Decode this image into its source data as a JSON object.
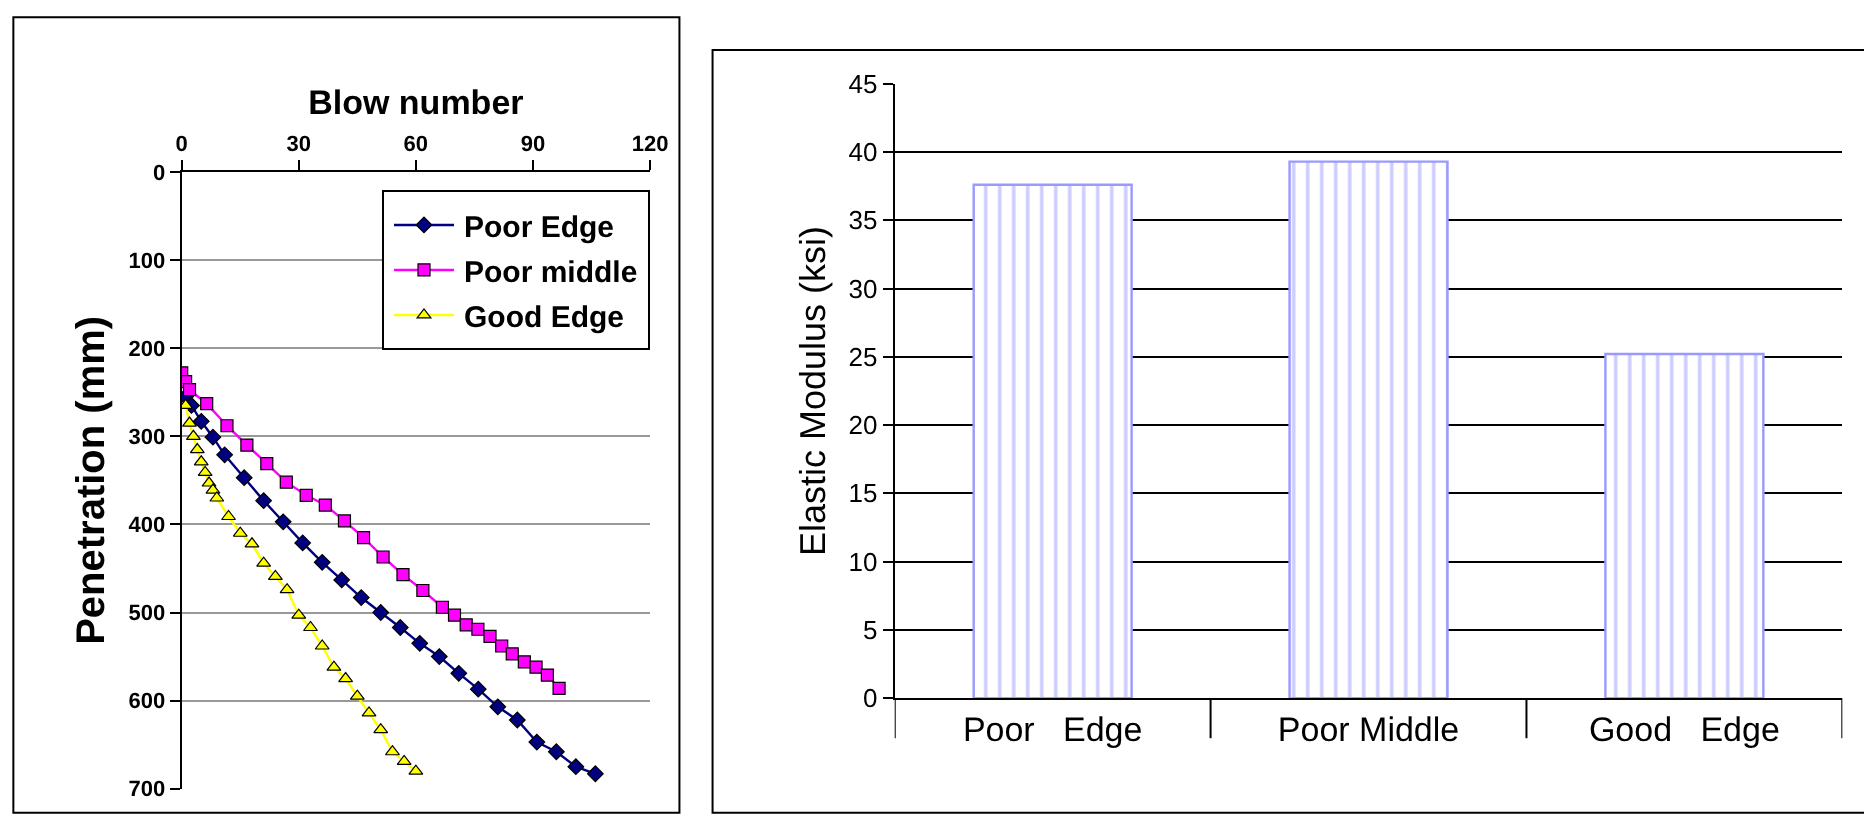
{
  "chart_data": [
    {
      "type": "line",
      "xlabel": "Blow number",
      "ylabel": "Penetration (mm)",
      "xlim": [
        0,
        120
      ],
      "xticks": [
        0,
        30,
        60,
        90,
        120
      ],
      "ylim": [
        700,
        0
      ],
      "yticks": [
        0,
        100,
        200,
        300,
        400,
        500,
        600,
        700
      ],
      "grid": "y",
      "legend": "top right",
      "series": [
        {
          "name": "Poor Edge",
          "color": "#000080",
          "marker": "diamond",
          "x": [
            1,
            2.5,
            5,
            8,
            11,
            16,
            21,
            26,
            31,
            36,
            41,
            46,
            51,
            56,
            61,
            66,
            71,
            76,
            81,
            86,
            91,
            96,
            101,
            106
          ],
          "values": [
            255,
            265,
            283,
            301,
            321,
            347,
            373,
            397,
            421,
            443,
            463,
            483,
            500,
            517,
            535,
            550,
            569,
            587,
            607,
            622,
            647,
            658,
            675,
            683
          ]
        },
        {
          "name": "Poor middle",
          "color": "#ff00ff",
          "marker": "square",
          "x": [
            0,
            1,
            2,
            6.4,
            11.6,
            16.7,
            21.8,
            26.8,
            31.9,
            36.8,
            41.7,
            46.6,
            51.6,
            56.7,
            61.8,
            66.8,
            69.9,
            72.9,
            75.9,
            79,
            82,
            84.7,
            87.8,
            90.8,
            93.7,
            96.7
          ],
          "values": [
            228,
            238,
            247,
            263,
            288,
            310,
            331,
            352,
            367,
            378,
            396,
            415,
            437,
            457,
            475,
            494,
            503,
            514,
            519,
            527,
            538,
            547,
            556,
            562,
            571,
            586
          ]
        },
        {
          "name": "Good Edge",
          "color": "#ffff00",
          "marker": "triangle",
          "x": [
            1,
            2,
            3,
            4,
            5,
            6,
            7,
            8,
            9,
            12,
            15,
            18,
            21,
            24,
            27,
            30,
            33,
            36,
            39,
            42,
            45,
            48,
            51,
            54,
            57,
            60
          ],
          "values": [
            265,
            285,
            300,
            315,
            329,
            341,
            353,
            361,
            370,
            391,
            410,
            422,
            444,
            459,
            474,
            503,
            517,
            538,
            562,
            575,
            595,
            614,
            633,
            658,
            669,
            680
          ]
        }
      ]
    },
    {
      "type": "bar",
      "ylabel": "Elastic Modulus (ksi)",
      "categories": [
        "Poor   Edge",
        "Poor Middle",
        "Good   Edge"
      ],
      "values": [
        37.6,
        39.3,
        25.2
      ],
      "color": "#9999ff",
      "ylim": [
        0,
        45
      ],
      "yticks": [
        0,
        5,
        10,
        15,
        20,
        25,
        30,
        35,
        40,
        45
      ],
      "grid": "y"
    }
  ]
}
